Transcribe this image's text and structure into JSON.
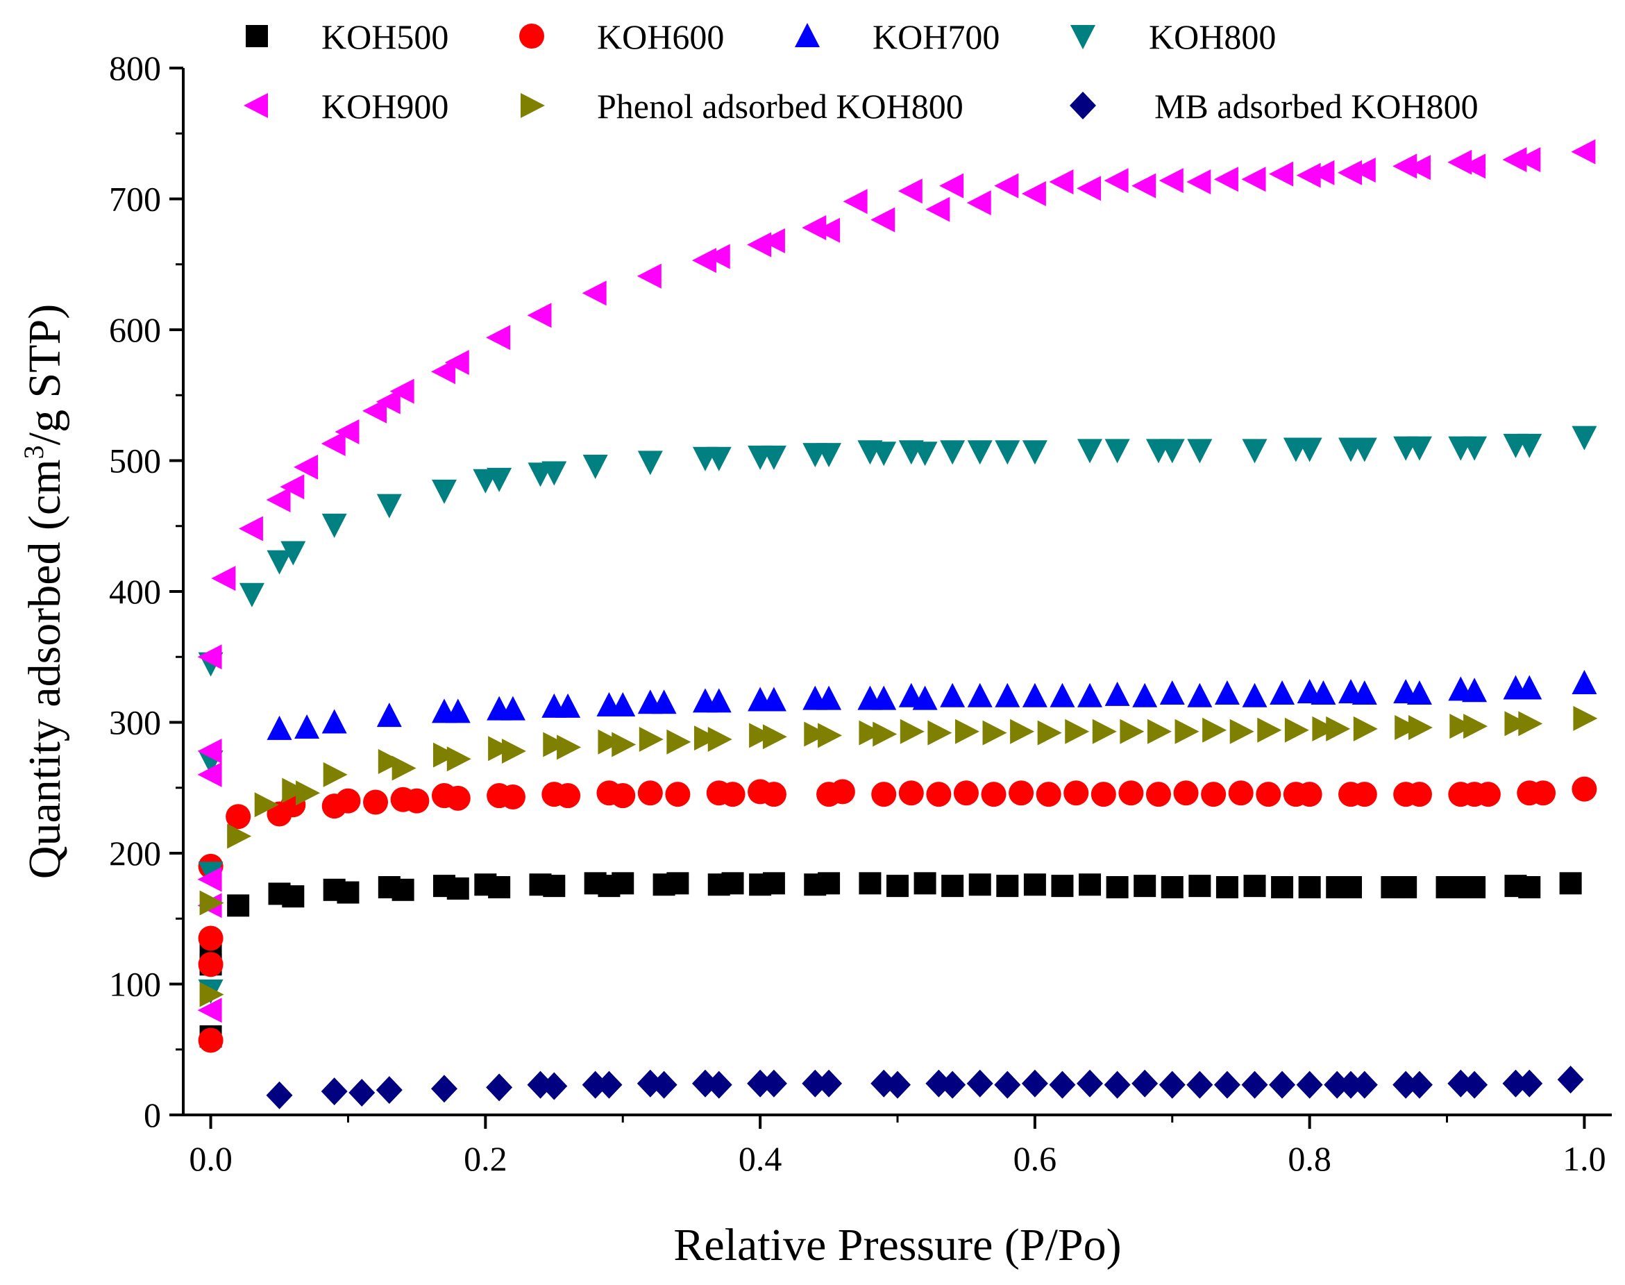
{
  "chart_data": {
    "type": "scatter",
    "title": "",
    "xlabel": "Relative Pressure (P/Po)",
    "ylabel_prefix": "Quantity adsorbed (cm",
    "ylabel_sup": "3",
    "ylabel_suffix": "/g STP)",
    "xlim": [
      -0.02,
      1.02
    ],
    "ylim": [
      0,
      800
    ],
    "x_ticks": [
      0.0,
      0.2,
      0.4,
      0.6,
      0.8,
      1.0
    ],
    "x_tick_labels": [
      "0.0",
      "0.2",
      "0.4",
      "0.6",
      "0.8",
      "1.0"
    ],
    "y_ticks": [
      0,
      100,
      200,
      300,
      400,
      500,
      600,
      700,
      800
    ],
    "y_tick_labels": [
      "0",
      "100",
      "200",
      "300",
      "400",
      "500",
      "600",
      "700",
      "800"
    ],
    "grid": false,
    "legend_position": "top",
    "series": [
      {
        "name": "KOH500",
        "marker": "square",
        "color": "#000000",
        "x": [
          0.0,
          0.0,
          0.0,
          0.02,
          0.05,
          0.06,
          0.09,
          0.1,
          0.13,
          0.14,
          0.17,
          0.18,
          0.2,
          0.21,
          0.24,
          0.25,
          0.28,
          0.29,
          0.3,
          0.33,
          0.34,
          0.37,
          0.38,
          0.4,
          0.41,
          0.44,
          0.45,
          0.48,
          0.5,
          0.52,
          0.54,
          0.56,
          0.58,
          0.6,
          0.62,
          0.64,
          0.66,
          0.68,
          0.7,
          0.72,
          0.74,
          0.76,
          0.78,
          0.8,
          0.82,
          0.83,
          0.86,
          0.87,
          0.9,
          0.91,
          0.92,
          0.95,
          0.96,
          0.99
        ],
        "y": [
          60,
          115,
          125,
          160,
          169,
          167,
          172,
          170,
          174,
          172,
          175,
          173,
          176,
          174,
          176,
          175,
          177,
          175,
          177,
          176,
          177,
          176,
          177,
          176,
          177,
          176,
          177,
          177,
          175,
          177,
          175,
          176,
          175,
          176,
          175,
          176,
          174,
          175,
          174,
          175,
          174,
          175,
          174,
          174,
          174,
          174,
          174,
          174,
          174,
          174,
          174,
          175,
          174,
          177
        ]
      },
      {
        "name": "KOH600",
        "marker": "circle",
        "color": "#ff0000",
        "x": [
          0.0,
          0.0,
          0.0,
          0.0,
          0.02,
          0.05,
          0.06,
          0.09,
          0.1,
          0.12,
          0.14,
          0.15,
          0.17,
          0.18,
          0.21,
          0.22,
          0.25,
          0.26,
          0.29,
          0.3,
          0.32,
          0.34,
          0.37,
          0.38,
          0.4,
          0.41,
          0.45,
          0.46,
          0.49,
          0.51,
          0.53,
          0.55,
          0.57,
          0.59,
          0.61,
          0.63,
          0.65,
          0.67,
          0.69,
          0.71,
          0.73,
          0.75,
          0.77,
          0.79,
          0.8,
          0.83,
          0.84,
          0.87,
          0.88,
          0.91,
          0.92,
          0.93,
          0.96,
          0.97,
          1.0
        ],
        "y": [
          57,
          115,
          135,
          190,
          228,
          230,
          237,
          236,
          240,
          239,
          241,
          240,
          244,
          242,
          244,
          243,
          245,
          244,
          246,
          244,
          246,
          245,
          246,
          245,
          247,
          245,
          245,
          247,
          245,
          246,
          245,
          246,
          245,
          246,
          245,
          246,
          245,
          246,
          245,
          246,
          245,
          246,
          245,
          245,
          245,
          245,
          245,
          245,
          245,
          245,
          245,
          245,
          246,
          246,
          249
        ]
      },
      {
        "name": "KOH700",
        "marker": "triangle-up",
        "color": "#0000ff",
        "x": [
          0.05,
          0.07,
          0.09,
          0.13,
          0.17,
          0.18,
          0.21,
          0.22,
          0.25,
          0.26,
          0.29,
          0.3,
          0.32,
          0.33,
          0.36,
          0.37,
          0.4,
          0.41,
          0.44,
          0.45,
          0.48,
          0.49,
          0.51,
          0.52,
          0.54,
          0.56,
          0.58,
          0.6,
          0.62,
          0.64,
          0.66,
          0.68,
          0.7,
          0.72,
          0.74,
          0.76,
          0.78,
          0.8,
          0.81,
          0.83,
          0.84,
          0.87,
          0.88,
          0.91,
          0.92,
          0.95,
          0.96,
          1.0
        ],
        "y": [
          295,
          296,
          300,
          305,
          308,
          308,
          310,
          310,
          312,
          312,
          313,
          313,
          315,
          315,
          316,
          316,
          317,
          317,
          318,
          318,
          318,
          318,
          320,
          318,
          320,
          320,
          320,
          320,
          320,
          320,
          321,
          320,
          322,
          320,
          322,
          320,
          322,
          323,
          322,
          323,
          322,
          323,
          322,
          325,
          324,
          326,
          326,
          330
        ]
      },
      {
        "name": "KOH800",
        "marker": "triangle-down",
        "color": "#008080",
        "x": [
          0.0,
          0.0,
          0.0,
          0.0,
          0.03,
          0.05,
          0.06,
          0.09,
          0.13,
          0.17,
          0.2,
          0.21,
          0.24,
          0.25,
          0.28,
          0.32,
          0.36,
          0.37,
          0.4,
          0.41,
          0.44,
          0.45,
          0.48,
          0.49,
          0.51,
          0.52,
          0.54,
          0.56,
          0.58,
          0.6,
          0.64,
          0.66,
          0.69,
          0.7,
          0.72,
          0.76,
          0.79,
          0.8,
          0.83,
          0.84,
          0.87,
          0.88,
          0.91,
          0.92,
          0.95,
          0.96,
          1.0
        ],
        "y": [
          95,
          185,
          270,
          345,
          398,
          423,
          430,
          451,
          466,
          477,
          485,
          486,
          490,
          491,
          496,
          499,
          502,
          502,
          503,
          503,
          505,
          505,
          507,
          506,
          507,
          506,
          507,
          507,
          507,
          507,
          508,
          508,
          508,
          508,
          508,
          508,
          509,
          509,
          509,
          509,
          510,
          510,
          510,
          510,
          512,
          512,
          518
        ]
      },
      {
        "name": "KOH900",
        "marker": "triangle-left",
        "color": "#ff00ff",
        "x": [
          0.0,
          0.0,
          0.0,
          0.0,
          0.0,
          0.0,
          0.01,
          0.03,
          0.05,
          0.06,
          0.07,
          0.09,
          0.1,
          0.12,
          0.13,
          0.14,
          0.17,
          0.18,
          0.21,
          0.24,
          0.28,
          0.32,
          0.36,
          0.37,
          0.4,
          0.41,
          0.44,
          0.45,
          0.47,
          0.49,
          0.51,
          0.53,
          0.54,
          0.56,
          0.58,
          0.6,
          0.62,
          0.64,
          0.66,
          0.68,
          0.7,
          0.72,
          0.74,
          0.76,
          0.78,
          0.8,
          0.81,
          0.83,
          0.84,
          0.87,
          0.88,
          0.91,
          0.92,
          0.95,
          0.96,
          1.0
        ],
        "y": [
          80,
          160,
          180,
          260,
          278,
          350,
          410,
          448,
          470,
          480,
          495,
          513,
          522,
          538,
          545,
          553,
          568,
          575,
          594,
          611,
          628,
          641,
          653,
          656,
          665,
          668,
          678,
          676,
          698,
          684,
          706,
          692,
          710,
          697,
          710,
          704,
          713,
          708,
          714,
          710,
          714,
          713,
          715,
          715,
          719,
          718,
          720,
          720,
          722,
          725,
          724,
          728,
          725,
          730,
          730,
          736
        ]
      },
      {
        "name": "Phenol adsorbed KOH800",
        "marker": "triangle-right",
        "color": "#808000",
        "x": [
          0.0,
          0.0,
          0.02,
          0.04,
          0.06,
          0.07,
          0.09,
          0.13,
          0.14,
          0.17,
          0.18,
          0.21,
          0.22,
          0.25,
          0.26,
          0.29,
          0.3,
          0.32,
          0.34,
          0.36,
          0.37,
          0.4,
          0.41,
          0.44,
          0.45,
          0.48,
          0.49,
          0.51,
          0.53,
          0.55,
          0.57,
          0.59,
          0.61,
          0.63,
          0.65,
          0.67,
          0.69,
          0.71,
          0.73,
          0.75,
          0.77,
          0.79,
          0.81,
          0.82,
          0.84,
          0.87,
          0.88,
          0.91,
          0.92,
          0.95,
          0.96,
          1.0
        ],
        "y": [
          92,
          162,
          213,
          237,
          248,
          246,
          260,
          270,
          265,
          275,
          272,
          280,
          278,
          283,
          281,
          285,
          283,
          287,
          285,
          288,
          287,
          290,
          289,
          291,
          290,
          292,
          291,
          293,
          292,
          293,
          292,
          293,
          292,
          293,
          293,
          293,
          293,
          293,
          294,
          293,
          294,
          294,
          295,
          295,
          295,
          296,
          296,
          297,
          297,
          299,
          299,
          303
        ]
      },
      {
        "name": "MB adsorbed KOH800",
        "marker": "diamond",
        "color": "#000080",
        "x": [
          0.05,
          0.09,
          0.11,
          0.13,
          0.17,
          0.21,
          0.24,
          0.25,
          0.28,
          0.29,
          0.32,
          0.33,
          0.36,
          0.37,
          0.4,
          0.41,
          0.44,
          0.45,
          0.49,
          0.5,
          0.53,
          0.54,
          0.56,
          0.58,
          0.6,
          0.62,
          0.64,
          0.66,
          0.68,
          0.7,
          0.72,
          0.74,
          0.76,
          0.78,
          0.8,
          0.82,
          0.83,
          0.84,
          0.87,
          0.88,
          0.91,
          0.92,
          0.95,
          0.96,
          0.99
        ],
        "y": [
          15,
          18,
          17,
          19,
          20,
          21,
          23,
          22,
          23,
          23,
          24,
          23,
          24,
          23,
          24,
          24,
          24,
          24,
          24,
          23,
          24,
          23,
          24,
          23,
          24,
          23,
          24,
          23,
          24,
          23,
          23,
          23,
          23,
          23,
          23,
          23,
          23,
          23,
          23,
          23,
          24,
          23,
          24,
          24,
          27
        ]
      }
    ]
  }
}
